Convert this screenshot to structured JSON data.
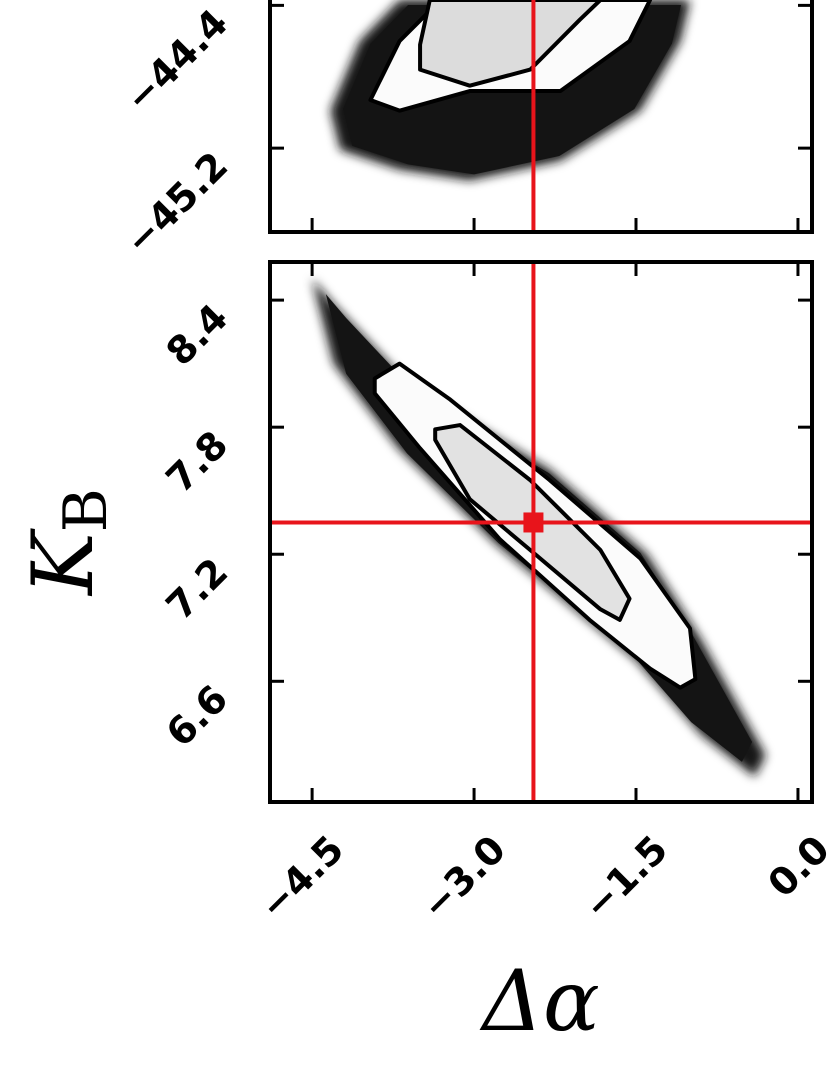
{
  "chart_data": [
    {
      "type": "scatter-density",
      "xlim": [
        -4.89,
        0.13
      ],
      "ylim": [
        -45.67,
        -44.0
      ],
      "xticks": [
        -4.5,
        -3.0,
        -1.5,
        0.0
      ],
      "xticklabels": false,
      "yticks": [
        {
          "value": -45.2,
          "label": "−45.2"
        },
        {
          "value": -44.4,
          "label": "−44.4"
        }
      ],
      "truth": {
        "x": -2.45
      },
      "truth_color": "#e8141b",
      "cloud": {
        "color": "#141414",
        "x": [
          -4.33,
          -4.06,
          -3.69,
          -1.0,
          -1.09,
          -1.46,
          -2.2,
          -3.04,
          -3.69,
          -4.24
        ],
        "y": [
          -44.99,
          -44.6,
          -44.37,
          -44.37,
          -44.6,
          -44.99,
          -45.27,
          -45.38,
          -45.32,
          -45.21
        ]
      },
      "contour_color": "#000000",
      "contours": [
        {
          "fill": "#fbfbfb",
          "x": [
            -3.96,
            -3.69,
            -3.31,
            -1.37,
            -1.56,
            -2.2,
            -3.04,
            -3.69
          ],
          "y": [
            -44.93,
            -44.6,
            -44.37,
            -44.37,
            -44.6,
            -44.88,
            -44.88,
            -44.99
          ]
        },
        {
          "fill": "#dcdcdc",
          "x": [
            -3.5,
            -3.41,
            -1.83,
            -2.02,
            -2.48,
            -3.04,
            -3.5
          ],
          "y": [
            -44.62,
            -44.37,
            -44.37,
            -44.48,
            -44.76,
            -44.85,
            -44.76
          ]
        }
      ]
    },
    {
      "type": "scatter-density",
      "xlim": [
        -4.89,
        0.13
      ],
      "ylim": [
        6.03,
        8.58
      ],
      "xticks": [
        {
          "value": -4.5,
          "label": "−4.5"
        },
        {
          "value": -3.0,
          "label": "−3.0"
        },
        {
          "value": -1.5,
          "label": "−1.5"
        },
        {
          "value": 0.0,
          "label": "0.0"
        }
      ],
      "xticklabels": true,
      "yticks": [
        6.6,
        7.2,
        7.8,
        8.4
      ],
      "xlabel": "Δα",
      "ylabel": "K",
      "ylabel_sub": "B",
      "truth": {
        "x": -2.45,
        "y": 7.35
      },
      "truth_color": "#e8141b",
      "cloud": {
        "color": "#141414",
        "x": [
          -4.5,
          -4.3,
          -3.6,
          -2.3,
          -1.4,
          -0.9,
          -0.3,
          -0.4,
          -0.9,
          -1.5,
          -2.8,
          -3.7,
          -4.3
        ],
        "y": [
          8.5,
          8.38,
          8.0,
          7.6,
          7.2,
          6.8,
          6.25,
          6.15,
          6.35,
          6.7,
          7.25,
          7.7,
          8.1
        ]
      },
      "contour_color": "#000000",
      "contours": [
        {
          "fill": "#fbfbfb",
          "x": [
            -3.92,
            -3.69,
            -3.22,
            -2.3,
            -1.46,
            -1.0,
            -0.95,
            -1.09,
            -1.37,
            -1.93,
            -2.76,
            -3.5,
            -3.92
          ],
          "y": [
            8.03,
            8.1,
            7.93,
            7.55,
            7.18,
            6.85,
            6.61,
            6.57,
            6.66,
            6.89,
            7.27,
            7.7,
            7.96
          ]
        },
        {
          "fill": "#e2e2e2",
          "x": [
            -3.36,
            -3.13,
            -2.48,
            -1.83,
            -1.56,
            -1.65,
            -1.83,
            -2.48,
            -3.04,
            -3.36
          ],
          "y": [
            7.79,
            7.81,
            7.55,
            7.22,
            6.99,
            6.89,
            6.94,
            7.22,
            7.46,
            7.74
          ]
        }
      ]
    }
  ]
}
